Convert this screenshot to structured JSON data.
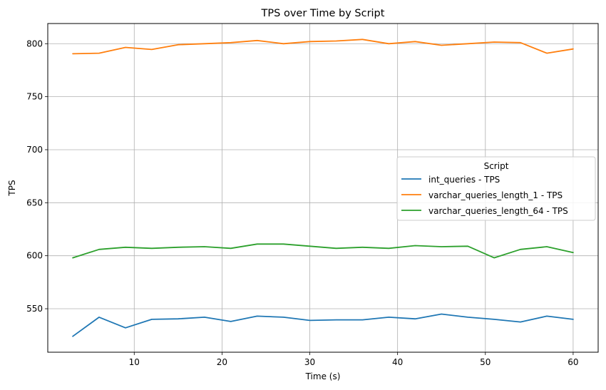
{
  "chart_data": {
    "type": "line",
    "title": "TPS over Time by Script",
    "xlabel": "Time (s)",
    "ylabel": "TPS",
    "xlim": [
      0.15,
      62.85
    ],
    "ylim": [
      509,
      819
    ],
    "xticks": [
      10,
      20,
      30,
      40,
      50,
      60
    ],
    "yticks": [
      550,
      600,
      650,
      700,
      750,
      800
    ],
    "grid": true,
    "legend": {
      "title": "Script",
      "placement": "center-right"
    },
    "x": [
      3,
      6,
      9,
      12,
      15,
      18,
      21,
      24,
      27,
      30,
      33,
      36,
      39,
      42,
      45,
      48,
      51,
      54,
      57,
      60
    ],
    "series": [
      {
        "name": "int_queries - TPS",
        "color": "#1f77b4",
        "values": [
          524,
          542,
          532,
          540,
          540.5,
          542,
          538,
          543,
          542,
          539,
          539.5,
          539.5,
          542,
          540.5,
          545,
          542,
          540,
          537.5,
          543,
          540
        ]
      },
      {
        "name": "varchar_queries_length_1 - TPS",
        "color": "#ff7f0e",
        "values": [
          790.5,
          791,
          796.5,
          794.5,
          799,
          800,
          801,
          803,
          800,
          802,
          802.5,
          804,
          800,
          802,
          798.5,
          800,
          801.5,
          801,
          791,
          795
        ]
      },
      {
        "name": "varchar_queries_length_64 - TPS",
        "color": "#2ca02c",
        "values": [
          598,
          606,
          608,
          607,
          608,
          608.5,
          607,
          611,
          611,
          609,
          607,
          608,
          607,
          609.5,
          608.5,
          609,
          598,
          606,
          608.5,
          603
        ]
      }
    ]
  }
}
